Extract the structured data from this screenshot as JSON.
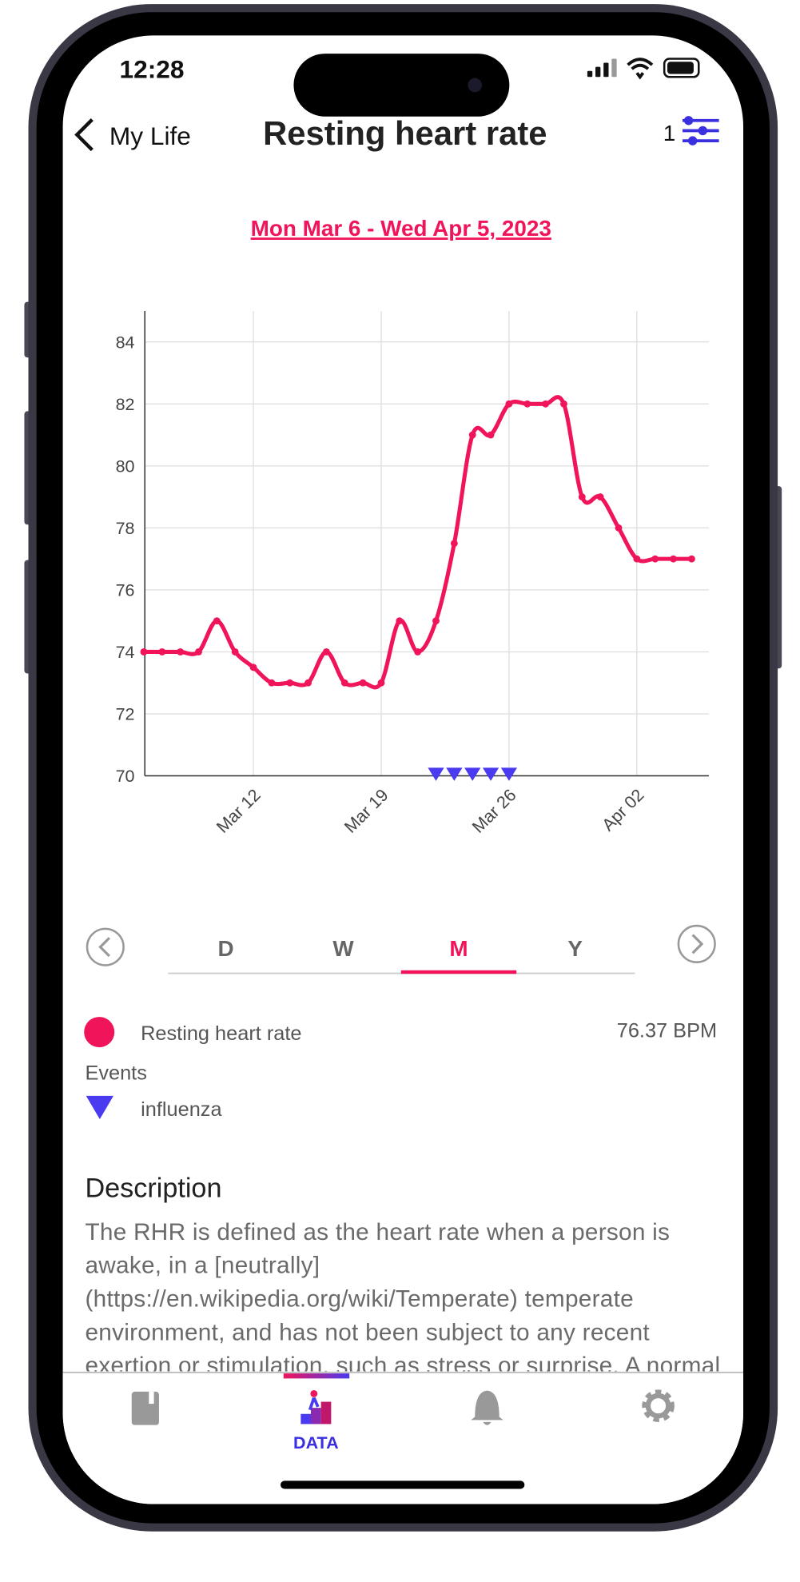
{
  "status_bar": {
    "time": "12:28"
  },
  "header": {
    "back": "My Life",
    "title": "Resting heart rate",
    "filter_count": "1"
  },
  "date_range": "Mon Mar 6 - Wed Apr 5, 2023",
  "chart_data": {
    "type": "line",
    "x": [
      "Mar 06",
      "Mar 07",
      "Mar 08",
      "Mar 09",
      "Mar 10",
      "Mar 11",
      "Mar 12",
      "Mar 13",
      "Mar 14",
      "Mar 15",
      "Mar 16",
      "Mar 17",
      "Mar 18",
      "Mar 19",
      "Mar 20",
      "Mar 21",
      "Mar 22",
      "Mar 23",
      "Mar 24",
      "Mar 25",
      "Mar 26",
      "Mar 27",
      "Mar 28",
      "Mar 29",
      "Mar 30",
      "Mar 31",
      "Apr 01",
      "Apr 02",
      "Apr 03",
      "Apr 04",
      "Apr 05"
    ],
    "series": [
      {
        "name": "Resting heart rate",
        "color": "#f0145a",
        "values": [
          74,
          74,
          74,
          74,
          75,
          74,
          73.5,
          73,
          73,
          73,
          74,
          73,
          73,
          73,
          75,
          74,
          75,
          77.5,
          81,
          81,
          82,
          82,
          82,
          82,
          79,
          79,
          78,
          77,
          77,
          77,
          77
        ]
      }
    ],
    "ylim": [
      70,
      85
    ],
    "yticks": [
      70,
      72,
      74,
      76,
      78,
      80,
      82,
      84
    ],
    "xticks": [
      "Mar 12",
      "Mar 19",
      "Mar 26",
      "Apr 02"
    ],
    "grid": true,
    "events": [
      {
        "name": "influenza",
        "color": "#4a3af0",
        "dates": [
          "Mar 22",
          "Mar 23",
          "Mar 24",
          "Mar 25",
          "Mar 26"
        ]
      }
    ]
  },
  "tabs": {
    "items": [
      "D",
      "W",
      "M",
      "Y"
    ],
    "active": 2
  },
  "legend": {
    "summary": "76.37 BPM",
    "events_heading": "Events"
  },
  "description": {
    "title": "Description",
    "text": "The RHR is defined as the heart rate when a person is awake, in a [neutrally](https://en.wikipedia.org/wiki/Temperate) temperate environment, and has not been subject to any recent exertion or stimulation, such as stress or surprise. A normal resting heart rate for"
  },
  "nav": {
    "active_label": "DATA"
  }
}
